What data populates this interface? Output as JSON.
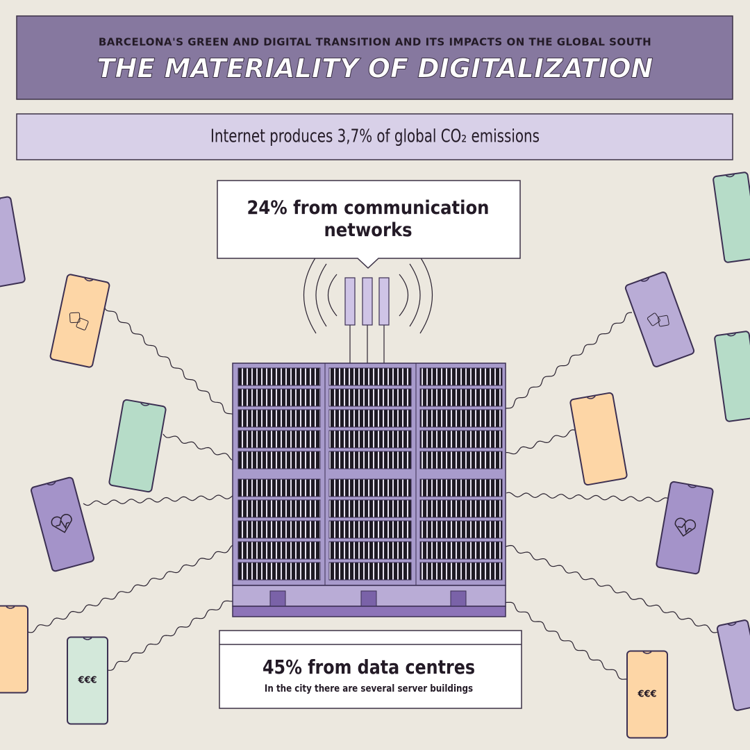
{
  "header": {
    "subtitle": "BARCELONA'S GREEN AND DIGITAL TRANSITION AND ITS IMPACTS ON THE GLOBAL SOUTH",
    "title": "THE MATERIALITY OF DIGITALIZATION"
  },
  "banner": "Internet produces 3,7% of global CO₂ emissions",
  "networks_callout": "24% from communication networks",
  "datacentres_callout": {
    "title": "45% from data centres",
    "note": "In the city there are several server buildings"
  },
  "phone_labels": [
    "€€€",
    "€€€"
  ]
}
